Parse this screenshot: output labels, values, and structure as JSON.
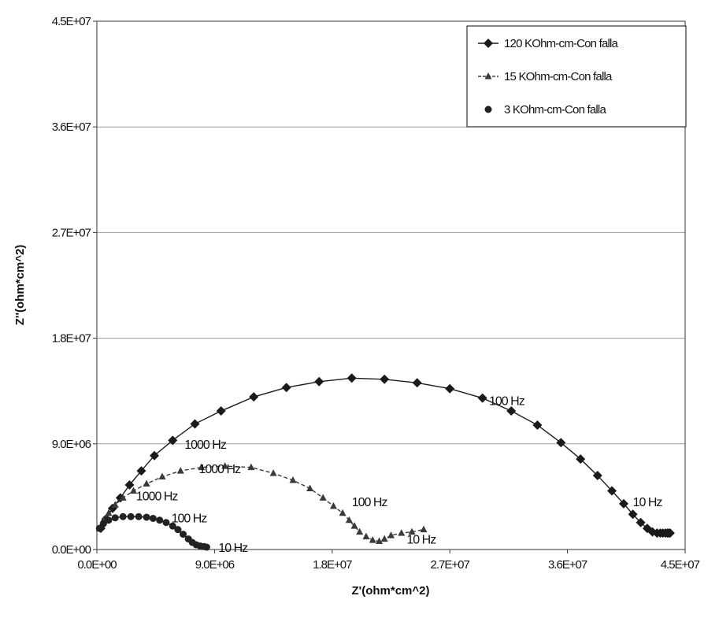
{
  "chart_data": {
    "type": "scatter",
    "xlabel": "Z'(ohm*cm^2)",
    "ylabel": "Z''(ohm*cm^2)",
    "xlim": [
      0,
      45000000
    ],
    "ylim": [
      0,
      45000000
    ],
    "x_ticks": [
      "0.0E+00",
      "9.0E+06",
      "1.8E+07",
      "2.7E+07",
      "3.6E+07",
      "4.5E+07"
    ],
    "y_ticks": [
      "0.0E+00",
      "9.0E+06",
      "1.8E+07",
      "2.7E+07",
      "3.6E+07",
      "4.5E+07"
    ],
    "grid": "horizontal",
    "legend_position": "top-right",
    "colors": {
      "series_120": "#1a1a1a",
      "series_15": "#3a3a3a",
      "series_3": "#222222",
      "grid": "#9a9a9a",
      "frame": "#555555"
    },
    "series": [
      {
        "name": "120 KOhm-cm-Con falla",
        "marker": "diamond",
        "line": "solid",
        "x": [
          300000,
          700000,
          1200000,
          1800000,
          2500000,
          3400000,
          4400000,
          5800000,
          7500000,
          9500000,
          12000000,
          14500000,
          17000000,
          19500000,
          22000000,
          24500000,
          27000000,
          29500000,
          31700000,
          33700000,
          35500000,
          37000000,
          38300000,
          39400000,
          40300000,
          41000000,
          41600000,
          42100000,
          42500000,
          42850000,
          43100000,
          43300000,
          43500000,
          43650000,
          43750000,
          43850000
        ],
        "y": [
          1800000,
          2600000,
          3500000,
          4400000,
          5500000,
          6700000,
          8000000,
          9300000,
          10700000,
          11800000,
          13000000,
          13800000,
          14300000,
          14600000,
          14500000,
          14200000,
          13700000,
          12900000,
          11800000,
          10600000,
          9100000,
          7700000,
          6300000,
          5000000,
          3900000,
          3000000,
          2300000,
          1800000,
          1500000,
          1400000,
          1400000,
          1400000,
          1400000,
          1400000,
          1400000,
          1400000
        ]
      },
      {
        "name": "15 KOhm-cm-Con falla",
        "marker": "triangle",
        "line": "dashed",
        "x": [
          200000,
          500000,
          900000,
          1400000,
          2000000,
          2800000,
          3800000,
          5000000,
          6400000,
          8000000,
          9800000,
          11800000,
          13500000,
          15000000,
          16300000,
          17300000,
          18100000,
          18800000,
          19300000,
          19700000,
          20100000,
          20600000,
          21100000,
          21600000,
          22000000,
          22500000,
          23300000,
          24100000,
          25000000
        ],
        "y": [
          1800000,
          2500000,
          3100000,
          3800000,
          4400000,
          5000000,
          5600000,
          6200000,
          6700000,
          7000000,
          7100000,
          7000000,
          6500000,
          5900000,
          5200000,
          4400000,
          3700000,
          3100000,
          2500000,
          2000000,
          1500000,
          1100000,
          800000,
          700000,
          900000,
          1200000,
          1400000,
          1500000,
          1700000
        ]
      },
      {
        "name": "3 KOhm-cm-Con falla",
        "marker": "circle",
        "line": "solid",
        "x": [
          200000,
          500000,
          900000,
          1400000,
          2000000,
          2600000,
          3200000,
          3800000,
          4300000,
          4800000,
          5300000,
          5800000,
          6200000,
          6600000,
          7000000,
          7300000,
          7600000,
          7900000,
          8200000,
          8400000
        ],
        "y": [
          1800000,
          2200000,
          2500000,
          2700000,
          2800000,
          2800000,
          2800000,
          2750000,
          2650000,
          2500000,
          2300000,
          2000000,
          1700000,
          1300000,
          900000,
          600000,
          400000,
          300000,
          250000,
          200000
        ]
      }
    ],
    "annotations": [
      {
        "text": "1000 Hz",
        "x": 6700000,
        "y": 9000000
      },
      {
        "text": "100 Hz",
        "x": 30000000,
        "y": 12700000
      },
      {
        "text": "10 Hz",
        "x": 41000000,
        "y": 4100000
      },
      {
        "text": "1000 Hz",
        "x": 7800000,
        "y": 6900000
      },
      {
        "text": "100 Hz",
        "x": 19500000,
        "y": 4100000
      },
      {
        "text": "10 Hz",
        "x": 23700000,
        "y": 900000
      },
      {
        "text": "1000 Hz",
        "x": 3000000,
        "y": 4600000
      },
      {
        "text": "100 Hz",
        "x": 5700000,
        "y": 2700000
      },
      {
        "text": "10 Hz",
        "x": 9300000,
        "y": 200000
      }
    ]
  }
}
